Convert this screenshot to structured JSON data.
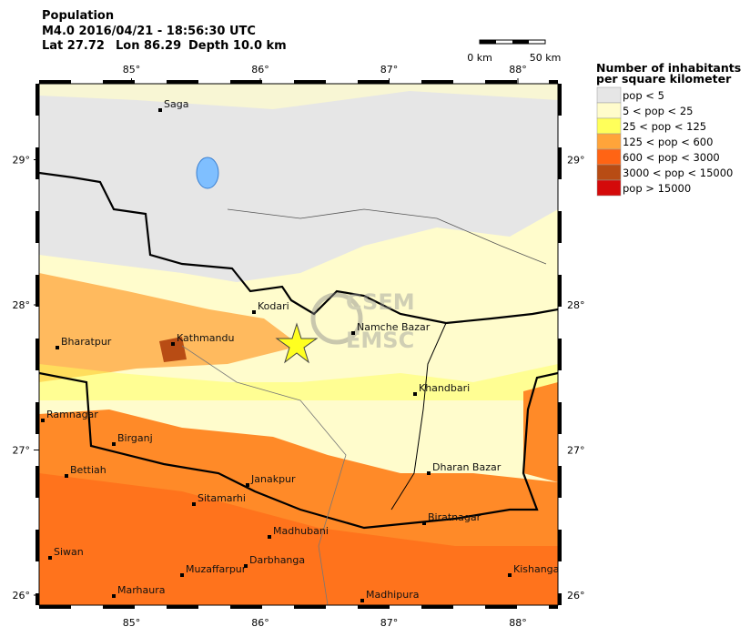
{
  "header": {
    "title": "Population",
    "event_line": "M4.0  2016/04/21 - 18:56:30 UTC",
    "lat": "Lat 27.72",
    "lon": "Lon 86.29",
    "depth": "Depth  10.0 km"
  },
  "scale_bar": {
    "start": "0 km",
    "end": "50 km"
  },
  "map": {
    "lon_ticks": [
      {
        "value": 85,
        "label": "85°"
      },
      {
        "value": 86,
        "label": "86°"
      },
      {
        "value": 87,
        "label": "87°"
      },
      {
        "value": 88,
        "label": "88°"
      }
    ],
    "lat_ticks": [
      {
        "value": 29,
        "label": "29°"
      },
      {
        "value": 28,
        "label": "28°"
      },
      {
        "value": 27,
        "label": "27°"
      },
      {
        "value": 26,
        "label": "26°"
      }
    ],
    "cities": [
      "Saga",
      "Kodari",
      "Namche Bazar",
      "Bharatpur",
      "Kathmandu",
      "Khandbari",
      "Ramnagar",
      "Birganj",
      "Bettiah",
      "Dharan Bazar",
      "Janakpur",
      "Sitamarhi",
      "Biratnagar",
      "Madhubani",
      "Siwan",
      "Muzaffarpur",
      "Darbhanga",
      "Kishanganj",
      "Marhaura",
      "Madhipura"
    ],
    "watermark_top": "CSEM",
    "watermark_bottom": "EMSC"
  },
  "legend": {
    "title_line1": "Number of inhabitants",
    "title_line2": "per square kilometer",
    "items": [
      {
        "label": "pop < 5",
        "color": "#e6e6e6"
      },
      {
        "label": "5 < pop < 25",
        "color": "#fffccc"
      },
      {
        "label": "25 < pop < 125",
        "color": "#ffff5a"
      },
      {
        "label": "125 < pop < 600",
        "color": "#ffa43a"
      },
      {
        "label": "600 < pop < 3000",
        "color": "#ff6414"
      },
      {
        "label": "3000 < pop < 15000",
        "color": "#b84c14"
      },
      {
        "label": "pop > 15000",
        "color": "#d40a0a"
      }
    ]
  }
}
